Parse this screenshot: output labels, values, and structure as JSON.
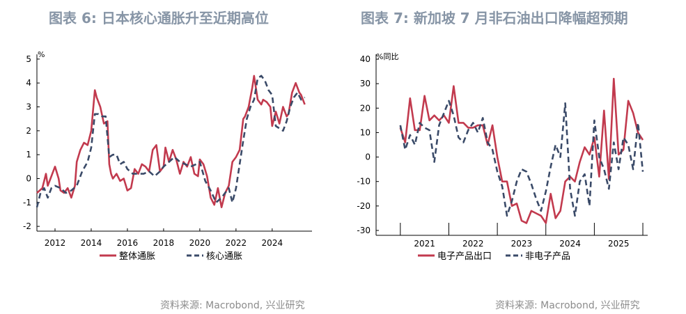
{
  "colors": {
    "red": "#c23a4e",
    "navy": "#3a4a68",
    "title": "#8795a6",
    "source": "#8c8c8c"
  },
  "chart_data": [
    {
      "type": "line",
      "title": "图表 6:  日本核心通胀升至近期高位",
      "unit": "%",
      "source": "资料来源: Macrobond, 兴业研究",
      "x_range": [
        2011.0,
        2026.2
      ],
      "ylim": [
        -2.2,
        5.2
      ],
      "y_ticks": [
        -2,
        -1,
        0,
        1,
        2,
        3,
        4,
        5
      ],
      "y_tick_labels": [
        "-2",
        "-1",
        "0",
        "1",
        "2",
        "3",
        "4",
        "5"
      ],
      "x_ticks": [
        2012,
        2014,
        2016,
        2018,
        2020,
        2022,
        2024
      ],
      "x_tick_labels": [
        "2012",
        "2014",
        "2016",
        "2018",
        "2020",
        "2022",
        "2024"
      ],
      "series": [
        {
          "name": "整体通胀",
          "style": "solid",
          "color": "#c23a4e",
          "x": [
            2011.0,
            2011.3,
            2011.5,
            2011.6,
            2011.8,
            2012.0,
            2012.2,
            2012.3,
            2012.5,
            2012.7,
            2012.9,
            2013.1,
            2013.2,
            2013.4,
            2013.6,
            2013.8,
            2014.0,
            2014.2,
            2014.3,
            2014.5,
            2014.7,
            2014.9,
            2015.0,
            2015.1,
            2015.2,
            2015.4,
            2015.6,
            2015.8,
            2016.0,
            2016.2,
            2016.4,
            2016.6,
            2016.8,
            2017.0,
            2017.2,
            2017.4,
            2017.6,
            2017.8,
            2018.0,
            2018.1,
            2018.3,
            2018.5,
            2018.7,
            2018.9,
            2019.1,
            2019.3,
            2019.5,
            2019.7,
            2019.9,
            2020.0,
            2020.2,
            2020.4,
            2020.6,
            2020.8,
            2021.0,
            2021.2,
            2021.4,
            2021.6,
            2021.8,
            2022.0,
            2022.2,
            2022.4,
            2022.5,
            2022.7,
            2022.9,
            2023.0,
            2023.2,
            2023.4,
            2023.5,
            2023.7,
            2023.9,
            2024.0,
            2024.2,
            2024.4,
            2024.6,
            2024.8,
            2024.9,
            2025.1,
            2025.3,
            2025.5,
            2025.6,
            2025.8
          ],
          "y": [
            -0.6,
            -0.4,
            0.2,
            -0.3,
            0.1,
            0.5,
            0.0,
            -0.5,
            -0.6,
            -0.4,
            -0.8,
            -0.3,
            0.7,
            1.2,
            1.5,
            1.4,
            2.0,
            3.7,
            3.4,
            3.0,
            2.3,
            2.4,
            0.6,
            0.2,
            0.0,
            0.2,
            -0.1,
            0.0,
            -0.5,
            -0.4,
            0.4,
            0.2,
            0.6,
            0.5,
            0.3,
            1.2,
            1.4,
            0.3,
            0.5,
            1.3,
            0.7,
            1.2,
            0.8,
            0.2,
            0.7,
            0.5,
            0.9,
            0.2,
            0.1,
            0.8,
            0.6,
            0.1,
            -0.8,
            -1.1,
            -0.4,
            -1.2,
            -0.6,
            -0.3,
            0.7,
            0.9,
            1.2,
            2.5,
            2.6,
            3.0,
            3.8,
            4.3,
            3.3,
            3.1,
            3.3,
            3.2,
            3.0,
            2.2,
            2.8,
            2.3,
            3.0,
            2.6,
            2.7,
            3.6,
            4.0,
            3.6,
            3.5,
            3.1
          ]
        },
        {
          "name": "核心通胀",
          "style": "dashed",
          "color": "#3a4a68",
          "x": [
            2011.0,
            2011.2,
            2011.4,
            2011.6,
            2011.8,
            2012.0,
            2012.3,
            2012.6,
            2012.9,
            2013.2,
            2013.5,
            2013.8,
            2014.0,
            2014.2,
            2014.4,
            2014.6,
            2014.8,
            2015.0,
            2015.2,
            2015.4,
            2015.6,
            2015.8,
            2016.0,
            2016.3,
            2016.6,
            2016.9,
            2017.2,
            2017.5,
            2017.8,
            2018.0,
            2018.3,
            2018.6,
            2018.9,
            2019.2,
            2019.5,
            2019.8,
            2020.0,
            2020.3,
            2020.6,
            2020.9,
            2021.2,
            2021.4,
            2021.6,
            2021.8,
            2022.0,
            2022.2,
            2022.4,
            2022.6,
            2022.8,
            2023.0,
            2023.2,
            2023.4,
            2023.6,
            2023.8,
            2024.0,
            2024.2,
            2024.4,
            2024.6,
            2024.8,
            2025.0,
            2025.2,
            2025.4,
            2025.6,
            2025.8
          ],
          "y": [
            -1.2,
            -0.6,
            -0.4,
            -0.8,
            -0.4,
            -0.3,
            -0.4,
            -0.6,
            -0.5,
            -0.3,
            0.3,
            0.7,
            1.3,
            2.7,
            2.7,
            2.6,
            2.6,
            0.9,
            1.0,
            1.0,
            0.6,
            0.7,
            0.4,
            0.2,
            0.2,
            0.2,
            0.3,
            0.1,
            0.3,
            0.5,
            0.7,
            0.9,
            0.7,
            0.6,
            0.5,
            0.6,
            0.7,
            -0.1,
            -0.5,
            -1.0,
            -0.8,
            -0.6,
            -0.4,
            -1.0,
            -0.4,
            0.6,
            1.6,
            2.5,
            3.0,
            3.3,
            4.2,
            4.3,
            4.1,
            3.7,
            3.5,
            2.2,
            2.1,
            2.0,
            2.4,
            3.0,
            3.4,
            3.6,
            3.3,
            3.4
          ]
        }
      ]
    },
    {
      "type": "line",
      "title": "图表 7:  新加坡 7 月非石油出口降幅超预期",
      "unit": "%同比",
      "source": "资料来源: Macrobond, 兴业研究",
      "x_range": [
        2020.0,
        2025.6
      ],
      "ylim": [
        -32,
        42
      ],
      "y_ticks": [
        -30,
        -20,
        -10,
        0,
        10,
        20,
        30,
        40
      ],
      "y_tick_labels": [
        "-30",
        "-20",
        "-10",
        "0",
        "10",
        "20",
        "30",
        "40"
      ],
      "x_ticks": [
        2020.5,
        2021.5,
        2022.5,
        2023.5,
        2024.5,
        2025.5
      ],
      "x_label_pos": [
        2021,
        2022,
        2023,
        2024,
        2025
      ],
      "x_tick_labels": [
        "2021",
        "2022",
        "2023",
        "2024",
        "2025"
      ],
      "series": [
        {
          "name": "电子产品出口",
          "style": "solid",
          "color": "#c23a4e",
          "x": [
            2020.5,
            2020.6,
            2020.7,
            2020.8,
            2020.9,
            2021.0,
            2021.1,
            2021.2,
            2021.3,
            2021.4,
            2021.5,
            2021.6,
            2021.7,
            2021.8,
            2021.9,
            2022.0,
            2022.1,
            2022.2,
            2022.3,
            2022.4,
            2022.5,
            2022.6,
            2022.7,
            2022.8,
            2022.9,
            2023.0,
            2023.1,
            2023.2,
            2023.3,
            2023.4,
            2023.5,
            2023.6,
            2023.7,
            2023.8,
            2023.9,
            2024.0,
            2024.1,
            2024.2,
            2024.3,
            2024.4,
            2024.5,
            2024.6,
            2024.7,
            2024.8,
            2024.9,
            2025.0,
            2025.1,
            2025.2,
            2025.3,
            2025.4,
            2025.5
          ],
          "y": [
            12,
            6,
            24,
            11,
            11,
            25,
            15,
            17,
            15,
            17,
            14,
            29,
            14,
            14,
            12,
            12,
            13,
            13,
            5,
            13,
            0,
            -10,
            -10,
            -20,
            -19,
            -26,
            -27,
            -22,
            -23,
            -24,
            -27,
            -15,
            -25,
            -22,
            -10,
            -8,
            -10,
            -2,
            4,
            1,
            8,
            -8,
            19,
            -9,
            32,
            1,
            3,
            23,
            18,
            10,
            7
          ]
        },
        {
          "name": "非电子产品",
          "style": "dashed",
          "color": "#3a4a68",
          "x": [
            2020.5,
            2020.6,
            2020.7,
            2020.8,
            2020.9,
            2021.0,
            2021.1,
            2021.2,
            2021.3,
            2021.4,
            2021.5,
            2021.6,
            2021.7,
            2021.8,
            2021.9,
            2022.0,
            2022.1,
            2022.2,
            2022.3,
            2022.4,
            2022.5,
            2022.6,
            2022.7,
            2022.8,
            2022.9,
            2023.0,
            2023.1,
            2023.2,
            2023.3,
            2023.4,
            2023.5,
            2023.6,
            2023.7,
            2023.8,
            2023.9,
            2024.0,
            2024.1,
            2024.2,
            2024.3,
            2024.4,
            2024.5,
            2024.6,
            2024.7,
            2024.8,
            2024.9,
            2025.0,
            2025.1,
            2025.2,
            2025.3,
            2025.4,
            2025.5
          ],
          "y": [
            13,
            3,
            9,
            5,
            14,
            12,
            11,
            -2,
            13,
            18,
            23,
            17,
            8,
            6,
            11,
            14,
            10,
            16,
            6,
            3,
            -6,
            -12,
            -24,
            -18,
            -10,
            -5,
            -6,
            -11,
            -17,
            -22,
            -14,
            -4,
            5,
            0,
            22,
            -13,
            -24,
            -10,
            -7,
            -20,
            15,
            0,
            -5,
            -13,
            6,
            -5,
            8,
            5,
            -5,
            14,
            -6
          ]
        }
      ]
    },
    {
      "type": "line",
      "subtitle": ""
    }
  ]
}
